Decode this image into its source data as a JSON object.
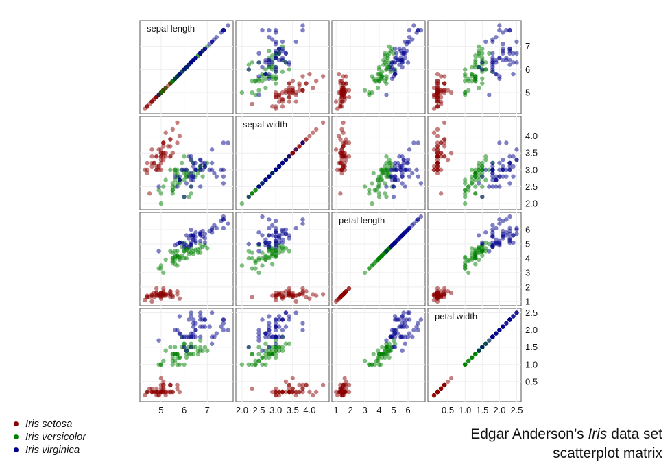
{
  "chart_data": {
    "type": "scatter",
    "variables": [
      "sepal length",
      "sepal width",
      "petal length",
      "petal width"
    ],
    "ranges": [
      [
        4.2,
        8.0
      ],
      [
        1.9,
        4.5
      ],
      [
        0.9,
        7.0
      ],
      [
        0.0,
        2.55
      ]
    ],
    "tick_labels": {
      "sepal length": [
        "5",
        "6",
        "7"
      ],
      "sepal width": [
        "2.0",
        "2.5",
        "3.0",
        "3.5",
        "4.0"
      ],
      "petal length": [
        "1",
        "2",
        "3",
        "4",
        "5",
        "6"
      ],
      "petal width": [
        "0.5",
        "1.0",
        "1.5",
        "2.0",
        "2.5"
      ]
    },
    "tick_values": {
      "sepal length": [
        5,
        6,
        7
      ],
      "sepal width": [
        2.0,
        2.5,
        3.0,
        3.5,
        4.0
      ],
      "petal length": [
        1,
        2,
        3,
        4,
        5,
        6
      ],
      "petal width": [
        0.5,
        1.0,
        1.5,
        2.0,
        2.5
      ]
    },
    "series": [
      {
        "name": "Iris setosa",
        "color": "#8b0000",
        "points": [
          [
            5.1,
            3.5,
            1.4,
            0.2
          ],
          [
            4.9,
            3.0,
            1.4,
            0.2
          ],
          [
            4.7,
            3.2,
            1.3,
            0.2
          ],
          [
            4.6,
            3.1,
            1.5,
            0.2
          ],
          [
            5.0,
            3.6,
            1.4,
            0.2
          ],
          [
            5.4,
            3.9,
            1.7,
            0.4
          ],
          [
            4.6,
            3.4,
            1.4,
            0.3
          ],
          [
            5.0,
            3.4,
            1.5,
            0.2
          ],
          [
            4.4,
            2.9,
            1.4,
            0.2
          ],
          [
            4.9,
            3.1,
            1.5,
            0.1
          ],
          [
            5.4,
            3.7,
            1.5,
            0.2
          ],
          [
            4.8,
            3.4,
            1.6,
            0.2
          ],
          [
            4.8,
            3.0,
            1.4,
            0.1
          ],
          [
            4.3,
            3.0,
            1.1,
            0.1
          ],
          [
            5.8,
            4.0,
            1.2,
            0.2
          ],
          [
            5.7,
            4.4,
            1.5,
            0.4
          ],
          [
            5.4,
            3.9,
            1.3,
            0.4
          ],
          [
            5.1,
            3.5,
            1.4,
            0.3
          ],
          [
            5.7,
            3.8,
            1.7,
            0.3
          ],
          [
            5.1,
            3.8,
            1.5,
            0.3
          ],
          [
            5.4,
            3.4,
            1.7,
            0.2
          ],
          [
            5.1,
            3.7,
            1.5,
            0.4
          ],
          [
            4.6,
            3.6,
            1.0,
            0.2
          ],
          [
            5.1,
            3.3,
            1.7,
            0.5
          ],
          [
            4.8,
            3.4,
            1.9,
            0.2
          ],
          [
            5.0,
            3.0,
            1.6,
            0.2
          ],
          [
            5.0,
            3.4,
            1.6,
            0.4
          ],
          [
            5.2,
            3.5,
            1.5,
            0.2
          ],
          [
            5.2,
            3.4,
            1.4,
            0.2
          ],
          [
            4.7,
            3.2,
            1.6,
            0.2
          ],
          [
            4.8,
            3.1,
            1.6,
            0.2
          ],
          [
            5.4,
            3.4,
            1.5,
            0.4
          ],
          [
            5.2,
            4.1,
            1.5,
            0.1
          ],
          [
            5.5,
            4.2,
            1.4,
            0.2
          ],
          [
            4.9,
            3.1,
            1.5,
            0.2
          ],
          [
            5.0,
            3.2,
            1.2,
            0.2
          ],
          [
            5.5,
            3.5,
            1.3,
            0.2
          ],
          [
            4.9,
            3.6,
            1.4,
            0.1
          ],
          [
            4.4,
            3.0,
            1.3,
            0.2
          ],
          [
            5.1,
            3.4,
            1.5,
            0.2
          ],
          [
            5.0,
            3.5,
            1.3,
            0.3
          ],
          [
            4.5,
            2.3,
            1.3,
            0.3
          ],
          [
            4.4,
            3.2,
            1.3,
            0.2
          ],
          [
            5.0,
            3.5,
            1.6,
            0.6
          ],
          [
            5.1,
            3.8,
            1.9,
            0.4
          ],
          [
            4.8,
            3.0,
            1.4,
            0.3
          ],
          [
            5.1,
            3.8,
            1.6,
            0.2
          ],
          [
            4.6,
            3.2,
            1.4,
            0.2
          ],
          [
            5.3,
            3.7,
            1.5,
            0.2
          ],
          [
            5.0,
            3.3,
            1.4,
            0.2
          ]
        ]
      },
      {
        "name": "Iris versicolor",
        "color": "#008000",
        "points": [
          [
            7.0,
            3.2,
            4.7,
            1.4
          ],
          [
            6.4,
            3.2,
            4.5,
            1.5
          ],
          [
            6.9,
            3.1,
            4.9,
            1.5
          ],
          [
            5.5,
            2.3,
            4.0,
            1.3
          ],
          [
            6.5,
            2.8,
            4.6,
            1.5
          ],
          [
            5.7,
            2.8,
            4.5,
            1.3
          ],
          [
            6.3,
            3.3,
            4.7,
            1.6
          ],
          [
            4.9,
            2.4,
            3.3,
            1.0
          ],
          [
            6.6,
            2.9,
            4.6,
            1.3
          ],
          [
            5.2,
            2.7,
            3.9,
            1.4
          ],
          [
            5.0,
            2.0,
            3.5,
            1.0
          ],
          [
            5.9,
            3.0,
            4.2,
            1.5
          ],
          [
            6.0,
            2.2,
            4.0,
            1.0
          ],
          [
            6.1,
            2.9,
            4.7,
            1.4
          ],
          [
            5.6,
            2.9,
            3.6,
            1.3
          ],
          [
            6.7,
            3.1,
            4.4,
            1.4
          ],
          [
            5.6,
            3.0,
            4.5,
            1.5
          ],
          [
            5.8,
            2.7,
            4.1,
            1.0
          ],
          [
            6.2,
            2.2,
            4.5,
            1.5
          ],
          [
            5.6,
            2.5,
            3.9,
            1.1
          ],
          [
            5.9,
            3.2,
            4.8,
            1.8
          ],
          [
            6.1,
            2.8,
            4.0,
            1.3
          ],
          [
            6.3,
            2.5,
            4.9,
            1.5
          ],
          [
            6.1,
            2.8,
            4.7,
            1.2
          ],
          [
            6.4,
            2.9,
            4.3,
            1.3
          ],
          [
            6.6,
            3.0,
            4.4,
            1.4
          ],
          [
            6.8,
            2.8,
            4.8,
            1.4
          ],
          [
            6.7,
            3.0,
            5.0,
            1.7
          ],
          [
            6.0,
            2.9,
            4.5,
            1.5
          ],
          [
            5.7,
            2.6,
            3.5,
            1.0
          ],
          [
            5.5,
            2.4,
            3.8,
            1.1
          ],
          [
            5.5,
            2.4,
            3.7,
            1.0
          ],
          [
            5.8,
            2.7,
            3.9,
            1.2
          ],
          [
            6.0,
            2.7,
            5.1,
            1.6
          ],
          [
            5.4,
            3.0,
            4.5,
            1.5
          ],
          [
            6.0,
            3.4,
            4.5,
            1.6
          ],
          [
            6.7,
            3.1,
            4.7,
            1.5
          ],
          [
            6.3,
            2.3,
            4.4,
            1.3
          ],
          [
            5.6,
            3.0,
            4.1,
            1.3
          ],
          [
            5.5,
            2.5,
            4.0,
            1.3
          ],
          [
            5.5,
            2.6,
            4.4,
            1.2
          ],
          [
            6.1,
            3.0,
            4.6,
            1.4
          ],
          [
            5.8,
            2.6,
            4.0,
            1.2
          ],
          [
            5.0,
            2.3,
            3.3,
            1.0
          ],
          [
            5.6,
            2.7,
            4.2,
            1.3
          ],
          [
            5.7,
            3.0,
            4.2,
            1.2
          ],
          [
            5.7,
            2.9,
            4.2,
            1.3
          ],
          [
            6.2,
            2.9,
            4.3,
            1.3
          ],
          [
            5.1,
            2.5,
            3.0,
            1.1
          ],
          [
            5.7,
            2.8,
            4.1,
            1.3
          ]
        ]
      },
      {
        "name": "Iris virginica",
        "color": "#00008b",
        "points": [
          [
            6.3,
            3.3,
            6.0,
            2.5
          ],
          [
            5.8,
            2.7,
            5.1,
            1.9
          ],
          [
            7.1,
            3.0,
            5.9,
            2.1
          ],
          [
            6.3,
            2.9,
            5.6,
            1.8
          ],
          [
            6.5,
            3.0,
            5.8,
            2.2
          ],
          [
            7.6,
            3.0,
            6.6,
            2.1
          ],
          [
            4.9,
            2.5,
            4.5,
            1.7
          ],
          [
            7.3,
            2.9,
            6.3,
            1.8
          ],
          [
            6.7,
            2.5,
            5.8,
            1.8
          ],
          [
            7.2,
            3.6,
            6.1,
            2.5
          ],
          [
            6.5,
            3.2,
            5.1,
            2.0
          ],
          [
            6.4,
            2.7,
            5.3,
            1.9
          ],
          [
            6.8,
            3.0,
            5.5,
            2.1
          ],
          [
            5.7,
            2.5,
            5.0,
            2.0
          ],
          [
            5.8,
            2.8,
            5.1,
            2.4
          ],
          [
            6.4,
            3.2,
            5.3,
            2.3
          ],
          [
            6.5,
            3.0,
            5.5,
            1.8
          ],
          [
            7.7,
            3.8,
            6.7,
            2.2
          ],
          [
            7.7,
            2.6,
            6.9,
            2.3
          ],
          [
            6.0,
            2.2,
            5.0,
            1.5
          ],
          [
            6.9,
            3.2,
            5.7,
            2.3
          ],
          [
            5.6,
            2.8,
            4.9,
            2.0
          ],
          [
            7.7,
            2.8,
            6.7,
            2.0
          ],
          [
            6.3,
            2.7,
            4.9,
            1.8
          ],
          [
            6.7,
            3.3,
            5.7,
            2.1
          ],
          [
            7.2,
            3.2,
            6.0,
            1.8
          ],
          [
            6.2,
            2.8,
            4.8,
            1.8
          ],
          [
            6.1,
            3.0,
            4.9,
            1.8
          ],
          [
            6.4,
            2.8,
            5.6,
            2.1
          ],
          [
            7.2,
            3.0,
            5.8,
            1.6
          ],
          [
            7.4,
            2.8,
            6.1,
            1.9
          ],
          [
            7.9,
            3.8,
            6.4,
            2.0
          ],
          [
            6.4,
            2.8,
            5.6,
            2.2
          ],
          [
            6.3,
            2.8,
            5.1,
            1.5
          ],
          [
            6.1,
            2.6,
            5.6,
            1.4
          ],
          [
            7.7,
            3.0,
            6.1,
            2.3
          ],
          [
            6.3,
            3.4,
            5.6,
            2.4
          ],
          [
            6.4,
            3.1,
            5.5,
            1.8
          ],
          [
            6.0,
            3.0,
            4.8,
            1.8
          ],
          [
            6.9,
            3.1,
            5.4,
            2.1
          ],
          [
            6.7,
            3.1,
            5.6,
            2.4
          ],
          [
            6.9,
            3.1,
            5.1,
            2.3
          ],
          [
            5.8,
            2.7,
            5.1,
            1.9
          ],
          [
            6.8,
            3.2,
            5.9,
            2.3
          ],
          [
            6.7,
            3.3,
            5.7,
            2.5
          ],
          [
            6.7,
            3.0,
            5.2,
            2.3
          ],
          [
            6.3,
            2.5,
            5.0,
            1.9
          ],
          [
            6.5,
            3.0,
            5.2,
            2.0
          ],
          [
            6.2,
            3.4,
            5.4,
            2.3
          ],
          [
            5.9,
            3.0,
            5.1,
            1.8
          ]
        ]
      }
    ]
  },
  "legend": {
    "items": [
      {
        "label": "Iris setosa",
        "color": "#8b0000"
      },
      {
        "label": "Iris versicolor",
        "color": "#008000"
      },
      {
        "label": "Iris virginica",
        "color": "#00008b"
      }
    ]
  },
  "caption": {
    "line1_before": "Edgar Anderson’s ",
    "line1_italic": "Iris",
    "line1_after": " data set",
    "line2": "scatterplot matrix"
  }
}
